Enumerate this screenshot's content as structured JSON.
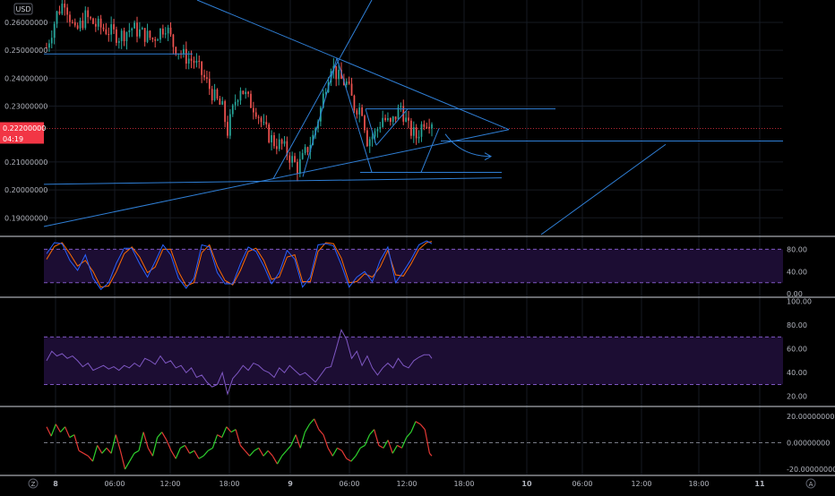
{
  "currency_badge": "USD",
  "price_tag": {
    "price": "0.22200000",
    "countdown": "04:19",
    "color": "#f23645"
  },
  "colors": {
    "background": "#000000",
    "grid": "#161a22",
    "up": "#26a69a",
    "down": "#ef5350",
    "drawing": "#2f7fd6",
    "stoch_k": "#2962ff",
    "stoch_d": "#ff6d00",
    "rsi": "#7e57c2",
    "band_fill": "#1c0d33",
    "band_line": "#7e57c2",
    "momentum_up": "#2ed12e",
    "momentum_down": "#e53935",
    "separator": "#cfd3dc",
    "axis_text": "#b2b5be"
  },
  "time_axis": {
    "ticks": [
      {
        "label": "8",
        "bold": true
      },
      {
        "label": "06:00"
      },
      {
        "label": "12:00"
      },
      {
        "label": "18:00"
      },
      {
        "label": "9",
        "bold": true
      },
      {
        "label": "06:00"
      },
      {
        "label": "12:00"
      },
      {
        "label": "18:00"
      },
      {
        "label": "10",
        "bold": true
      },
      {
        "label": "06:00"
      },
      {
        "label": "12:00"
      },
      {
        "label": "18:00"
      },
      {
        "label": "11",
        "bold": true
      }
    ],
    "left_button": "Z",
    "right_button": "A"
  },
  "chart_data": [
    {
      "name": "price",
      "type": "candlestick",
      "y_ticks": [
        "0.26000000",
        "0.25000000",
        "0.24000000",
        "0.23000000",
        "0.21000000",
        "0.20000000",
        "0.19000000"
      ],
      "ylim": [
        0.184,
        0.268
      ],
      "last_price": 0.222,
      "drawing_color": "#2f7fd6",
      "candle_count": 150,
      "path": [
        [
          0,
          0.251
        ],
        [
          4,
          0.263
        ],
        [
          7,
          0.268
        ],
        [
          11,
          0.256
        ],
        [
          15,
          0.262
        ],
        [
          19,
          0.259
        ],
        [
          24,
          0.257
        ],
        [
          28,
          0.255
        ],
        [
          33,
          0.258
        ],
        [
          37,
          0.256
        ],
        [
          41,
          0.254
        ],
        [
          46,
          0.259
        ],
        [
          49,
          0.252
        ],
        [
          53,
          0.248
        ],
        [
          57,
          0.246
        ],
        [
          61,
          0.24
        ],
        [
          65,
          0.233
        ],
        [
          68,
          0.229
        ],
        [
          70,
          0.221
        ],
        [
          73,
          0.232
        ],
        [
          75,
          0.237
        ],
        [
          78,
          0.232
        ],
        [
          81,
          0.229
        ],
        [
          84,
          0.222
        ],
        [
          88,
          0.217
        ],
        [
          91,
          0.216
        ],
        [
          94,
          0.212
        ],
        [
          97,
          0.208
        ],
        [
          99,
          0.211
        ],
        [
          103,
          0.219
        ],
        [
          106,
          0.229
        ],
        [
          108,
          0.238
        ],
        [
          110,
          0.245
        ],
        [
          113,
          0.24
        ],
        [
          116,
          0.238
        ],
        [
          119,
          0.23
        ],
        [
          122,
          0.229
        ],
        [
          124,
          0.218
        ],
        [
          127,
          0.22
        ],
        [
          130,
          0.226
        ],
        [
          133,
          0.223
        ],
        [
          137,
          0.23
        ],
        [
          140,
          0.222
        ],
        [
          143,
          0.219
        ],
        [
          146,
          0.225
        ],
        [
          149,
          0.225
        ]
      ]
    },
    {
      "name": "stochastic",
      "type": "line",
      "y_ticks": [
        "80.00",
        "40.00",
        "0.00"
      ],
      "ylim": [
        -3,
        100
      ],
      "bands": [
        80,
        20
      ],
      "k": [
        [
          0,
          72
        ],
        [
          3,
          92
        ],
        [
          6,
          90
        ],
        [
          9,
          60
        ],
        [
          12,
          42
        ],
        [
          15,
          70
        ],
        [
          18,
          28
        ],
        [
          21,
          8
        ],
        [
          24,
          20
        ],
        [
          27,
          55
        ],
        [
          30,
          82
        ],
        [
          33,
          82
        ],
        [
          36,
          54
        ],
        [
          39,
          30
        ],
        [
          42,
          58
        ],
        [
          45,
          88
        ],
        [
          48,
          70
        ],
        [
          51,
          28
        ],
        [
          54,
          10
        ],
        [
          57,
          28
        ],
        [
          60,
          88
        ],
        [
          63,
          84
        ],
        [
          66,
          38
        ],
        [
          69,
          18
        ],
        [
          72,
          18
        ],
        [
          75,
          54
        ],
        [
          78,
          84
        ],
        [
          81,
          76
        ],
        [
          84,
          50
        ],
        [
          87,
          18
        ],
        [
          90,
          38
        ],
        [
          93,
          78
        ],
        [
          96,
          62
        ],
        [
          99,
          12
        ],
        [
          102,
          30
        ],
        [
          105,
          88
        ],
        [
          108,
          90
        ],
        [
          111,
          86
        ],
        [
          114,
          52
        ],
        [
          117,
          12
        ],
        [
          120,
          30
        ],
        [
          123,
          40
        ],
        [
          126,
          22
        ],
        [
          129,
          60
        ],
        [
          132,
          84
        ],
        [
          135,
          20
        ],
        [
          138,
          40
        ],
        [
          141,
          62
        ],
        [
          144,
          88
        ],
        [
          147,
          95
        ],
        [
          149,
          90
        ]
      ],
      "d": [
        [
          0,
          62
        ],
        [
          3,
          85
        ],
        [
          6,
          92
        ],
        [
          9,
          72
        ],
        [
          12,
          50
        ],
        [
          15,
          60
        ],
        [
          18,
          40
        ],
        [
          21,
          12
        ],
        [
          24,
          14
        ],
        [
          27,
          40
        ],
        [
          30,
          72
        ],
        [
          33,
          84
        ],
        [
          36,
          66
        ],
        [
          39,
          38
        ],
        [
          42,
          48
        ],
        [
          45,
          80
        ],
        [
          48,
          80
        ],
        [
          51,
          40
        ],
        [
          54,
          14
        ],
        [
          57,
          20
        ],
        [
          60,
          74
        ],
        [
          63,
          88
        ],
        [
          66,
          50
        ],
        [
          69,
          24
        ],
        [
          72,
          16
        ],
        [
          75,
          42
        ],
        [
          78,
          76
        ],
        [
          81,
          82
        ],
        [
          84,
          60
        ],
        [
          87,
          26
        ],
        [
          90,
          30
        ],
        [
          93,
          66
        ],
        [
          96,
          70
        ],
        [
          99,
          22
        ],
        [
          102,
          22
        ],
        [
          105,
          76
        ],
        [
          108,
          92
        ],
        [
          111,
          90
        ],
        [
          114,
          64
        ],
        [
          117,
          20
        ],
        [
          120,
          22
        ],
        [
          123,
          36
        ],
        [
          126,
          30
        ],
        [
          129,
          48
        ],
        [
          132,
          78
        ],
        [
          135,
          34
        ],
        [
          138,
          32
        ],
        [
          141,
          54
        ],
        [
          144,
          80
        ],
        [
          147,
          92
        ],
        [
          149,
          94
        ]
      ]
    },
    {
      "name": "rsi",
      "type": "line",
      "y_ticks": [
        "100.00",
        "80.00",
        "60.00",
        "40.00",
        "20.00"
      ],
      "ylim": [
        13,
        102
      ],
      "bands": [
        70,
        30
      ],
      "values": [
        [
          0,
          50
        ],
        [
          2,
          58
        ],
        [
          4,
          54
        ],
        [
          6,
          56
        ],
        [
          8,
          52
        ],
        [
          10,
          54
        ],
        [
          12,
          50
        ],
        [
          14,
          45
        ],
        [
          16,
          48
        ],
        [
          18,
          42
        ],
        [
          20,
          44
        ],
        [
          22,
          46
        ],
        [
          24,
          43
        ],
        [
          26,
          45
        ],
        [
          28,
          42
        ],
        [
          30,
          46
        ],
        [
          32,
          44
        ],
        [
          34,
          48
        ],
        [
          36,
          45
        ],
        [
          38,
          52
        ],
        [
          40,
          50
        ],
        [
          42,
          47
        ],
        [
          44,
          54
        ],
        [
          46,
          48
        ],
        [
          48,
          50
        ],
        [
          50,
          44
        ],
        [
          52,
          46
        ],
        [
          54,
          40
        ],
        [
          56,
          44
        ],
        [
          58,
          36
        ],
        [
          60,
          38
        ],
        [
          62,
          32
        ],
        [
          64,
          28
        ],
        [
          66,
          30
        ],
        [
          68,
          40
        ],
        [
          70,
          22
        ],
        [
          72,
          35
        ],
        [
          74,
          40
        ],
        [
          76,
          46
        ],
        [
          78,
          42
        ],
        [
          80,
          48
        ],
        [
          82,
          46
        ],
        [
          84,
          42
        ],
        [
          86,
          40
        ],
        [
          88,
          36
        ],
        [
          90,
          44
        ],
        [
          92,
          40
        ],
        [
          94,
          46
        ],
        [
          96,
          42
        ],
        [
          98,
          38
        ],
        [
          100,
          40
        ],
        [
          102,
          36
        ],
        [
          104,
          32
        ],
        [
          106,
          38
        ],
        [
          108,
          44
        ],
        [
          110,
          45
        ],
        [
          112,
          60
        ],
        [
          114,
          76
        ],
        [
          116,
          68
        ],
        [
          118,
          52
        ],
        [
          120,
          58
        ],
        [
          122,
          46
        ],
        [
          124,
          54
        ],
        [
          126,
          44
        ],
        [
          128,
          38
        ],
        [
          130,
          44
        ],
        [
          132,
          48
        ],
        [
          134,
          44
        ],
        [
          136,
          52
        ],
        [
          138,
          46
        ],
        [
          140,
          44
        ],
        [
          142,
          50
        ],
        [
          144,
          53
        ],
        [
          146,
          55
        ],
        [
          148,
          55
        ],
        [
          149,
          52
        ]
      ]
    },
    {
      "name": "momentum",
      "type": "line",
      "y_ticks": [
        "20.00000000",
        "0.00000000",
        "-20.00000000"
      ],
      "ylim": [
        -24,
        26
      ],
      "baseline": 0,
      "values": [
        [
          0,
          12
        ],
        [
          2,
          5
        ],
        [
          4,
          14
        ],
        [
          6,
          8
        ],
        [
          8,
          12
        ],
        [
          10,
          4
        ],
        [
          12,
          6
        ],
        [
          14,
          -6
        ],
        [
          16,
          -8
        ],
        [
          18,
          -10
        ],
        [
          20,
          -14
        ],
        [
          22,
          -2
        ],
        [
          24,
          -8
        ],
        [
          26,
          -4
        ],
        [
          28,
          -8
        ],
        [
          30,
          6
        ],
        [
          32,
          -6
        ],
        [
          34,
          -20
        ],
        [
          36,
          -14
        ],
        [
          38,
          -8
        ],
        [
          40,
          -6
        ],
        [
          42,
          8
        ],
        [
          44,
          -4
        ],
        [
          46,
          -10
        ],
        [
          48,
          4
        ],
        [
          50,
          8
        ],
        [
          52,
          2
        ],
        [
          54,
          -6
        ],
        [
          56,
          -12
        ],
        [
          58,
          -4
        ],
        [
          60,
          -2
        ],
        [
          62,
          -8
        ],
        [
          64,
          -6
        ],
        [
          66,
          -12
        ],
        [
          68,
          -10
        ],
        [
          70,
          -6
        ],
        [
          72,
          -4
        ],
        [
          74,
          6
        ],
        [
          76,
          4
        ],
        [
          78,
          12
        ],
        [
          80,
          8
        ],
        [
          82,
          10
        ],
        [
          84,
          -2
        ],
        [
          86,
          -6
        ],
        [
          88,
          -10
        ],
        [
          90,
          -6
        ],
        [
          92,
          -4
        ],
        [
          94,
          -10
        ],
        [
          96,
          -6
        ],
        [
          98,
          -10
        ],
        [
          100,
          -16
        ],
        [
          102,
          -10
        ],
        [
          104,
          -6
        ],
        [
          106,
          -2
        ],
        [
          108,
          6
        ],
        [
          110,
          -4
        ],
        [
          112,
          8
        ],
        [
          114,
          14
        ],
        [
          116,
          18
        ],
        [
          118,
          10
        ],
        [
          120,
          6
        ],
        [
          122,
          -4
        ],
        [
          124,
          -10
        ],
        [
          126,
          -4
        ],
        [
          128,
          -6
        ],
        [
          130,
          -12
        ],
        [
          132,
          -14
        ],
        [
          134,
          -10
        ],
        [
          136,
          -4
        ],
        [
          138,
          -2
        ],
        [
          140,
          6
        ],
        [
          142,
          10
        ],
        [
          144,
          -2
        ],
        [
          146,
          -4
        ],
        [
          148,
          2
        ],
        [
          150,
          -8
        ],
        [
          152,
          -2
        ],
        [
          154,
          -4
        ],
        [
          156,
          4
        ],
        [
          158,
          8
        ],
        [
          160,
          16
        ],
        [
          162,
          14
        ],
        [
          164,
          10
        ],
        [
          166,
          -8
        ],
        [
          167,
          -10
        ]
      ]
    }
  ]
}
